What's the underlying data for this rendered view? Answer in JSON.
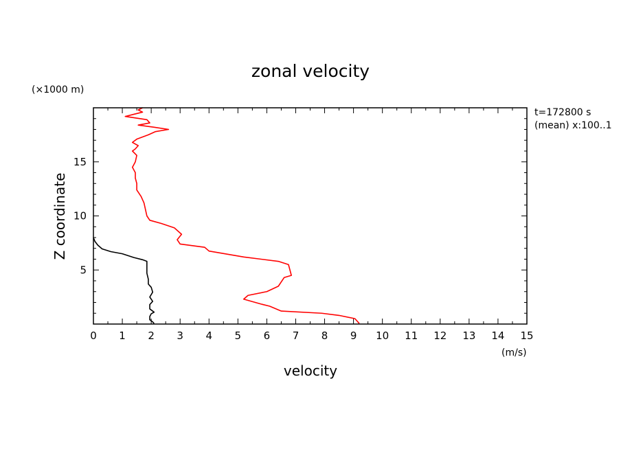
{
  "chart_data": {
    "type": "line",
    "title": "zonal velocity",
    "xlabel": "velocity",
    "ylabel": "Z coordinate",
    "x_unit": "(m/s)",
    "y_unit": "(×1000 m)",
    "annotations": [
      "t=172800 s",
      "(mean) x:100..1"
    ],
    "xlim": [
      0,
      15
    ],
    "ylim": [
      0,
      20
    ],
    "x_ticks": [
      0,
      1,
      2,
      3,
      4,
      5,
      6,
      7,
      8,
      9,
      10,
      11,
      12,
      13,
      14,
      15
    ],
    "y_ticks": [
      5,
      10,
      15
    ],
    "grid": false,
    "series": [
      {
        "color": "#000000",
        "points": [
          [
            2.1,
            0.05
          ],
          [
            2.05,
            0.2
          ],
          [
            1.95,
            0.4
          ],
          [
            1.95,
            0.7
          ],
          [
            2.0,
            0.95
          ],
          [
            2.1,
            1.1
          ],
          [
            1.95,
            1.4
          ],
          [
            1.95,
            1.8
          ],
          [
            2.05,
            2.1
          ],
          [
            1.95,
            2.5
          ],
          [
            2.05,
            2.95
          ],
          [
            2.0,
            3.4
          ],
          [
            1.9,
            3.7
          ],
          [
            1.9,
            4.15
          ],
          [
            1.85,
            4.7
          ],
          [
            1.85,
            5.1
          ],
          [
            1.85,
            5.8
          ],
          [
            1.7,
            5.95
          ],
          [
            1.4,
            6.15
          ],
          [
            1.0,
            6.5
          ],
          [
            0.6,
            6.7
          ],
          [
            0.3,
            6.95
          ],
          [
            0.15,
            7.3
          ],
          [
            0.05,
            7.65
          ],
          [
            0.0,
            8.0
          ]
        ]
      },
      {
        "color": "#ff0000",
        "points": [
          [
            9.2,
            0.05
          ],
          [
            9.05,
            0.5
          ],
          [
            8.5,
            0.8
          ],
          [
            7.9,
            1.0
          ],
          [
            6.5,
            1.2
          ],
          [
            6.1,
            1.65
          ],
          [
            5.8,
            1.85
          ],
          [
            5.2,
            2.3
          ],
          [
            5.35,
            2.65
          ],
          [
            6.0,
            3.0
          ],
          [
            6.4,
            3.5
          ],
          [
            6.6,
            4.3
          ],
          [
            6.85,
            4.5
          ],
          [
            6.8,
            5.0
          ],
          [
            6.75,
            5.5
          ],
          [
            6.4,
            5.8
          ],
          [
            5.2,
            6.2
          ],
          [
            4.0,
            6.75
          ],
          [
            3.85,
            7.1
          ],
          [
            3.0,
            7.4
          ],
          [
            2.9,
            7.8
          ],
          [
            3.05,
            8.3
          ],
          [
            2.8,
            8.9
          ],
          [
            2.35,
            9.3
          ],
          [
            1.95,
            9.6
          ],
          [
            1.85,
            10.0
          ],
          [
            1.8,
            10.6
          ],
          [
            1.75,
            11.2
          ],
          [
            1.65,
            11.8
          ],
          [
            1.5,
            12.4
          ],
          [
            1.5,
            13.0
          ],
          [
            1.45,
            13.5
          ],
          [
            1.45,
            14.0
          ],
          [
            1.35,
            14.5
          ],
          [
            1.45,
            15.0
          ],
          [
            1.5,
            15.6
          ],
          [
            1.35,
            16.0
          ],
          [
            1.45,
            16.2
          ],
          [
            1.55,
            16.5
          ],
          [
            1.35,
            16.8
          ],
          [
            1.5,
            17.1
          ],
          [
            1.9,
            17.5
          ],
          [
            2.15,
            17.8
          ],
          [
            2.6,
            18.0
          ],
          [
            2.1,
            18.2
          ],
          [
            1.55,
            18.4
          ],
          [
            1.95,
            18.6
          ],
          [
            1.85,
            18.9
          ],
          [
            1.1,
            19.2
          ],
          [
            1.4,
            19.4
          ],
          [
            1.7,
            19.6
          ],
          [
            1.55,
            19.8
          ],
          [
            1.7,
            20.0
          ]
        ]
      }
    ]
  }
}
